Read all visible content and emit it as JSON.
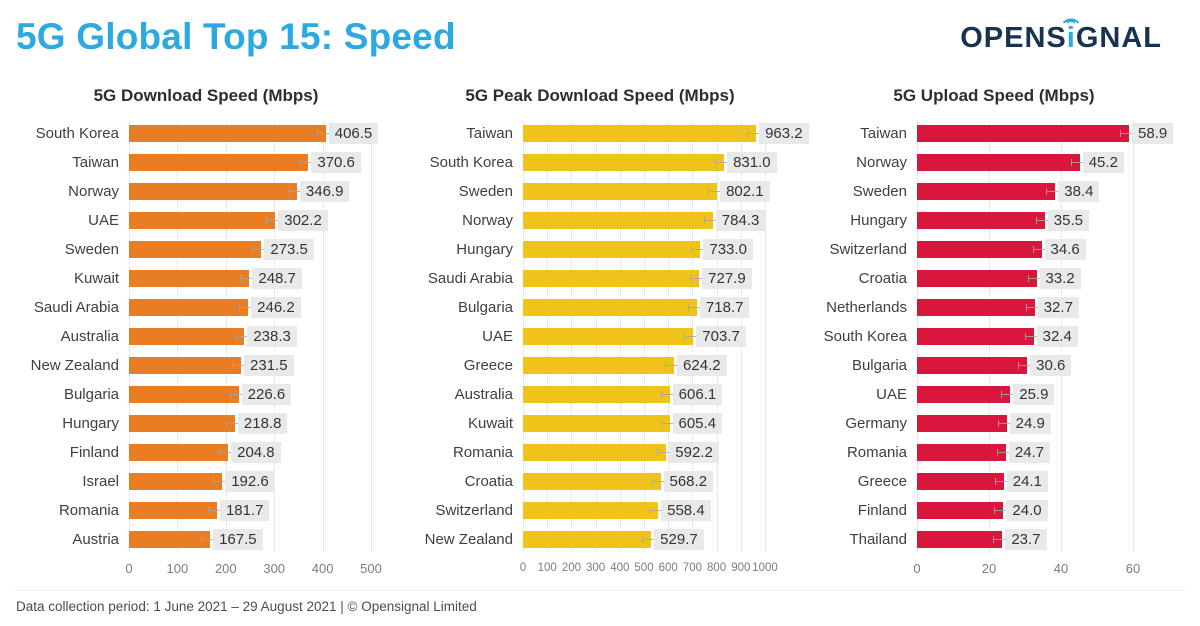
{
  "page": {
    "title": "5G Global Top 15: Speed",
    "logo": {
      "part1": "OPENS",
      "i": "i",
      "part2": "GNAL"
    },
    "footer": "Data collection period: 1 June 2021 – 29 August 2021  |  © Opensignal Limited"
  },
  "colors": {
    "title_blue": "#2BA9E0",
    "logo_navy": "#17334E",
    "download_orange": "#E87D24",
    "peak_yellow": "#EFC319",
    "upload_red": "#D9163C",
    "value_chip_bg": "#E9E9E9",
    "gridline": "#D6D6D6"
  },
  "chart_data": [
    {
      "type": "bar",
      "orientation": "horizontal",
      "title": "5G Download Speed (Mbps)",
      "categories": [
        "South Korea",
        "Taiwan",
        "Norway",
        "UAE",
        "Sweden",
        "Kuwait",
        "Saudi Arabia",
        "Australia",
        "New Zealand",
        "Bulgaria",
        "Hungary",
        "Finland",
        "Israel",
        "Romania",
        "Austria"
      ],
      "values": [
        406.5,
        370.6,
        346.9,
        302.2,
        273.5,
        248.7,
        246.2,
        238.3,
        231.5,
        226.6,
        218.8,
        204.8,
        192.6,
        181.7,
        167.5
      ],
      "value_labels": [
        "406.5",
        "370.6",
        "346.9",
        "302.2",
        "273.5",
        "248.7",
        "246.2",
        "238.3",
        "231.5",
        "226.6",
        "218.8",
        "204.8",
        "192.6",
        "181.7",
        "167.5"
      ],
      "xlabel": "",
      "ylabel": "",
      "xlim": [
        0,
        500
      ],
      "xticks": [
        0,
        100,
        200,
        300,
        400,
        500
      ],
      "grid": true,
      "error_bars": true,
      "legend": false,
      "bar_color": "#E87D24"
    },
    {
      "type": "bar",
      "orientation": "horizontal",
      "title": "5G Peak Download Speed (Mbps)",
      "categories": [
        "Taiwan",
        "South Korea",
        "Sweden",
        "Norway",
        "Hungary",
        "Saudi Arabia",
        "Bulgaria",
        "UAE",
        "Greece",
        "Australia",
        "Kuwait",
        "Romania",
        "Croatia",
        "Switzerland",
        "New Zealand"
      ],
      "values": [
        963.2,
        831.0,
        802.1,
        784.3,
        733.0,
        727.9,
        718.7,
        703.7,
        624.2,
        606.1,
        605.4,
        592.2,
        568.2,
        558.4,
        529.7
      ],
      "value_labels": [
        "963.2",
        "831.0",
        "802.1",
        "784.3",
        "733.0",
        "727.9",
        "718.7",
        "703.7",
        "624.2",
        "606.1",
        "605.4",
        "592.2",
        "568.2",
        "558.4",
        "529.7"
      ],
      "xlabel": "",
      "ylabel": "",
      "xlim": [
        0,
        1000
      ],
      "xticks": [
        0,
        100,
        200,
        300,
        400,
        500,
        600,
        700,
        800,
        900,
        1000
      ],
      "grid": true,
      "error_bars": true,
      "legend": false,
      "bar_color": "#EFC319"
    },
    {
      "type": "bar",
      "orientation": "horizontal",
      "title": "5G Upload Speed (Mbps)",
      "categories": [
        "Taiwan",
        "Norway",
        "Sweden",
        "Hungary",
        "Switzerland",
        "Croatia",
        "Netherlands",
        "South Korea",
        "Bulgaria",
        "UAE",
        "Germany",
        "Romania",
        "Greece",
        "Finland",
        "Thailand"
      ],
      "values": [
        58.9,
        45.2,
        38.4,
        35.5,
        34.6,
        33.2,
        32.7,
        32.4,
        30.6,
        25.9,
        24.9,
        24.7,
        24.1,
        24.0,
        23.7
      ],
      "value_labels": [
        "58.9",
        "45.2",
        "38.4",
        "35.5",
        "34.6",
        "33.2",
        "32.7",
        "32.4",
        "30.6",
        "25.9",
        "24.9",
        "24.7",
        "24.1",
        "24.0",
        "23.7"
      ],
      "xlabel": "",
      "ylabel": "",
      "xlim": [
        0,
        60
      ],
      "xticks": [
        0,
        20,
        40,
        60
      ],
      "grid": true,
      "error_bars": true,
      "legend": false,
      "bar_color": "#D9163C"
    }
  ]
}
